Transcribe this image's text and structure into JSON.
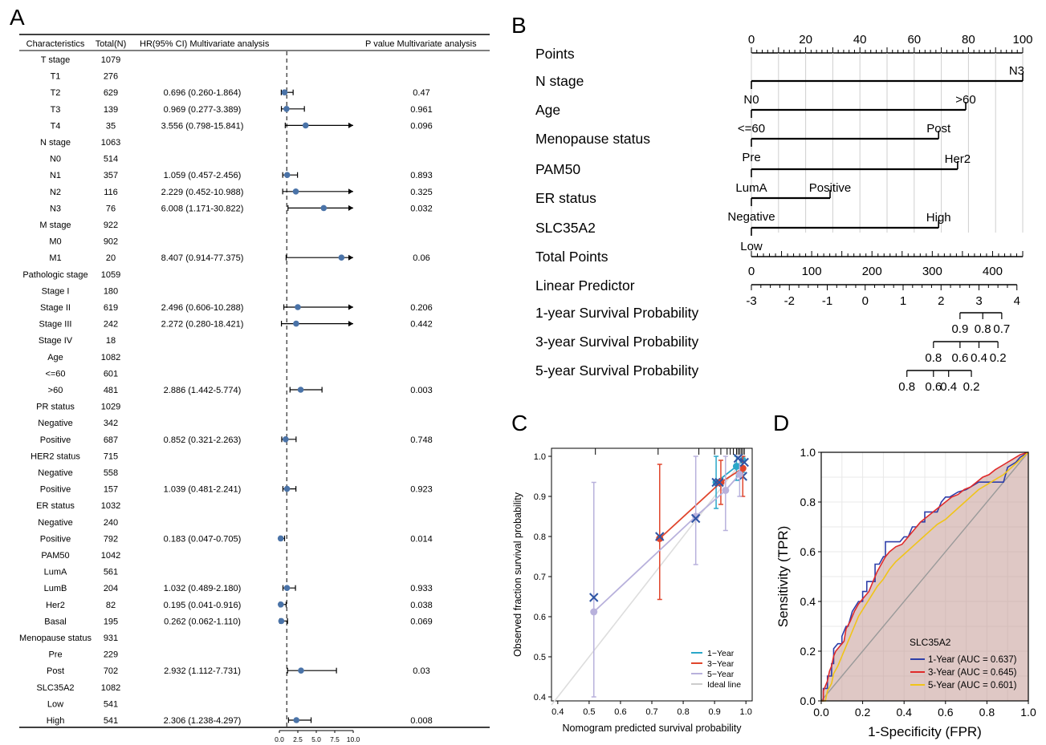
{
  "panels": {
    "A": "A",
    "B": "B",
    "C": "C",
    "D": "D"
  },
  "forest": {
    "headers": {
      "characteristics": "Characteristics",
      "total": "Total(N)",
      "hr": "HR(95% CI) Multivariate analysis",
      "p": "P value Multivariate analysis"
    },
    "axis_ticks": [
      "0.0",
      "2.5",
      "5.0",
      "7.5",
      "10.0"
    ],
    "axis_range": [
      0,
      10
    ],
    "rows": [
      {
        "label": "T stage",
        "n": "1079"
      },
      {
        "label": "T1",
        "n": "276"
      },
      {
        "label": "T2",
        "n": "629",
        "hr_text": "0.696 (0.260-1.864)",
        "p": "0.47",
        "hr": 0.696,
        "lo": 0.26,
        "hi": 1.864
      },
      {
        "label": "T3",
        "n": "139",
        "hr_text": "0.969 (0.277-3.389)",
        "p": "0.961",
        "hr": 0.969,
        "lo": 0.277,
        "hi": 3.389
      },
      {
        "label": "T4",
        "n": "35",
        "hr_text": "3.556 (0.798-15.841)",
        "p": "0.096",
        "hr": 3.556,
        "lo": 0.798,
        "hi": 15.841
      },
      {
        "label": "N stage",
        "n": "1063"
      },
      {
        "label": "N0",
        "n": "514"
      },
      {
        "label": "N1",
        "n": "357",
        "hr_text": "1.059 (0.457-2.456)",
        "p": "0.893",
        "hr": 1.059,
        "lo": 0.457,
        "hi": 2.456
      },
      {
        "label": "N2",
        "n": "116",
        "hr_text": "2.229 (0.452-10.988)",
        "p": "0.325",
        "hr": 2.229,
        "lo": 0.452,
        "hi": 10.988
      },
      {
        "label": "N3",
        "n": "76",
        "hr_text": "6.008 (1.171-30.822)",
        "p": "0.032",
        "hr": 6.008,
        "lo": 1.171,
        "hi": 30.822
      },
      {
        "label": "M stage",
        "n": "922"
      },
      {
        "label": "M0",
        "n": "902"
      },
      {
        "label": "M1",
        "n": "20",
        "hr_text": "8.407 (0.914-77.375)",
        "p": "0.06",
        "hr": 8.407,
        "lo": 0.914,
        "hi": 77.375
      },
      {
        "label": "Pathologic stage",
        "n": "1059"
      },
      {
        "label": "Stage I",
        "n": "180"
      },
      {
        "label": "Stage II",
        "n": "619",
        "hr_text": "2.496 (0.606-10.288)",
        "p": "0.206",
        "hr": 2.496,
        "lo": 0.606,
        "hi": 10.288
      },
      {
        "label": "Stage III",
        "n": "242",
        "hr_text": "2.272 (0.280-18.421)",
        "p": "0.442",
        "hr": 2.272,
        "lo": 0.28,
        "hi": 18.421
      },
      {
        "label": "Stage IV",
        "n": "18"
      },
      {
        "label": "Age",
        "n": "1082"
      },
      {
        "label": "<=60",
        "n": "601"
      },
      {
        "label": ">60",
        "n": "481",
        "hr_text": "2.886 (1.442-5.774)",
        "p": "0.003",
        "hr": 2.886,
        "lo": 1.442,
        "hi": 5.774
      },
      {
        "label": "PR status",
        "n": "1029"
      },
      {
        "label": "Negative",
        "n": "342"
      },
      {
        "label": "Positive",
        "n": "687",
        "hr_text": "0.852 (0.321-2.263)",
        "p": "0.748",
        "hr": 0.852,
        "lo": 0.321,
        "hi": 2.263
      },
      {
        "label": "HER2 status",
        "n": "715"
      },
      {
        "label": "Negative",
        "n": "558"
      },
      {
        "label": "Positive",
        "n": "157",
        "hr_text": "1.039 (0.481-2.241)",
        "p": "0.923",
        "hr": 1.039,
        "lo": 0.481,
        "hi": 2.241
      },
      {
        "label": "ER status",
        "n": "1032"
      },
      {
        "label": "Negative",
        "n": "240"
      },
      {
        "label": "Positive",
        "n": "792",
        "hr_text": "0.183 (0.047-0.705)",
        "p": "0.014",
        "hr": 0.183,
        "lo": 0.047,
        "hi": 0.705
      },
      {
        "label": "PAM50",
        "n": "1042"
      },
      {
        "label": "LumA",
        "n": "561"
      },
      {
        "label": "LumB",
        "n": "204",
        "hr_text": "1.032 (0.489-2.180)",
        "p": "0.933",
        "hr": 1.032,
        "lo": 0.489,
        "hi": 2.18
      },
      {
        "label": "Her2",
        "n": "82",
        "hr_text": "0.195 (0.041-0.916)",
        "p": "0.038",
        "hr": 0.195,
        "lo": 0.041,
        "hi": 0.916
      },
      {
        "label": "Basal",
        "n": "195",
        "hr_text": "0.262 (0.062-1.110)",
        "p": "0.069",
        "hr": 0.262,
        "lo": 0.062,
        "hi": 1.11
      },
      {
        "label": "Menopause status",
        "n": "931"
      },
      {
        "label": "Pre",
        "n": "229"
      },
      {
        "label": "Post",
        "n": "702",
        "hr_text": "2.932 (1.112-7.731)",
        "p": "0.03",
        "hr": 2.932,
        "lo": 1.112,
        "hi": 7.731
      },
      {
        "label": "SLC35A2",
        "n": "1082"
      },
      {
        "label": "Low",
        "n": "541"
      },
      {
        "label": "High",
        "n": "541",
        "hr_text": "2.306 (1.238-4.297)",
        "p": "0.008",
        "hr": 2.306,
        "lo": 1.238,
        "hi": 4.297
      }
    ]
  },
  "nomogram": {
    "row_labels": [
      "Points",
      "N stage",
      "Age",
      "Menopause status",
      "PAM50",
      "ER status",
      "SLC35A2",
      "Total Points",
      "Linear Predictor",
      "1-year Survival Probability",
      "3-year Survival Probability",
      "5-year Survival Probability"
    ],
    "points_range": [
      0,
      100
    ],
    "points_ticks": [
      "0",
      "20",
      "40",
      "60",
      "80",
      "100"
    ],
    "variables": [
      {
        "name": "N stage",
        "max": 100,
        "labels": [
          {
            "text": "N3",
            "at": 100,
            "pos": "above-end"
          },
          {
            "text": "N0",
            "at": 0,
            "pos": "below"
          }
        ]
      },
      {
        "name": "Age",
        "max": 79,
        "labels": [
          {
            "text": ">60",
            "at": 79,
            "pos": "above-end"
          },
          {
            "text": "<=60",
            "at": 0,
            "pos": "below"
          }
        ]
      },
      {
        "name": "Menopause status",
        "max": 69,
        "labels": [
          {
            "text": "Post",
            "at": 69,
            "pos": "above-end"
          },
          {
            "text": "Pre",
            "at": 0,
            "pos": "below"
          }
        ]
      },
      {
        "name": "PAM50",
        "max": 76,
        "labels": [
          {
            "text": "Her2",
            "at": 76,
            "pos": "above-end"
          },
          {
            "text": "LumA",
            "at": 0,
            "pos": "below"
          }
        ]
      },
      {
        "name": "ER status",
        "max": 29,
        "labels": [
          {
            "text": "Positive",
            "at": 29,
            "pos": "above-end"
          },
          {
            "text": "Negative",
            "at": 0,
            "pos": "below"
          }
        ]
      },
      {
        "name": "SLC35A2",
        "max": 69,
        "labels": [
          {
            "text": "High",
            "at": 69,
            "pos": "above-end"
          },
          {
            "text": "Low",
            "at": 0,
            "pos": "below"
          }
        ]
      }
    ],
    "total_points": {
      "range": [
        0,
        450
      ],
      "ticks": [
        "0",
        "100",
        "200",
        "300",
        "400"
      ]
    },
    "linear_predictor": {
      "range": [
        -3,
        4
      ],
      "ticks": [
        "-3",
        "-2",
        "-1",
        "0",
        "1",
        "2",
        "3",
        "4"
      ]
    },
    "survival": [
      {
        "name": "1-year Survival Probability",
        "ticks": [
          "0.9",
          "0.8",
          "0.7"
        ],
        "tick_lp": [
          2.5,
          3.1,
          3.6
        ]
      },
      {
        "name": "3-year Survival Probability",
        "ticks": [
          "0.8",
          "0.6",
          "0.4",
          "0.2"
        ],
        "tick_lp": [
          1.8,
          2.5,
          3.0,
          3.5
        ]
      },
      {
        "name": "5-year Survival Probability",
        "ticks": [
          "0.8",
          "0.6",
          "0.4",
          "0.2"
        ],
        "tick_lp": [
          1.1,
          1.8,
          2.2,
          2.8
        ]
      }
    ]
  },
  "calibration": {
    "xlabel": "Nomogram predicted survival probability",
    "ylabel": "Observed fraction survival probability",
    "xlim": [
      0.38,
      1.02
    ],
    "ylim": [
      0.39,
      1.02
    ],
    "xticks": [
      "0.4",
      "0.5",
      "0.6",
      "0.7",
      "0.8",
      "0.9",
      "1.0"
    ],
    "yticks": [
      "0.4",
      "0.5",
      "0.6",
      "0.7",
      "0.8",
      "0.9",
      "1.0"
    ],
    "legend": [
      "1−Year",
      "3−Year",
      "5−Year",
      "Ideal line"
    ],
    "colors": [
      "#2aa7c9",
      "#e0452c",
      "#b8b1dc",
      "#cccccc"
    ],
    "series": [
      {
        "name": "1−Year",
        "color": "#2aa7c9",
        "x": [
          0.905,
          0.97,
          0.99
        ],
        "y": [
          0.935,
          0.975,
          0.99
        ],
        "lo": [
          0.87,
          0.94,
          0.96
        ],
        "hi": [
          1.0,
          1.0,
          1.0
        ],
        "xmarks": [
          [
            0.905,
            0.935
          ],
          [
            0.99,
            0.95
          ]
        ]
      },
      {
        "name": "3−Year",
        "color": "#e0452c",
        "x": [
          0.725,
          0.92,
          0.99
        ],
        "y": [
          0.795,
          0.935,
          0.97
        ],
        "lo": [
          0.643,
          0.88,
          0.9
        ],
        "hi": [
          0.98,
          0.99,
          1.0
        ],
        "xmarks": [
          [
            0.725,
            0.8
          ],
          [
            0.915,
            0.935
          ]
        ]
      },
      {
        "name": "5−Year",
        "color": "#b8b1dc",
        "x": [
          0.515,
          0.84,
          0.935,
          0.98
        ],
        "y": [
          0.612,
          0.85,
          0.915,
          0.955
        ],
        "lo": [
          0.4,
          0.73,
          0.815,
          0.9
        ],
        "hi": [
          0.935,
          1.0,
          1.0,
          1.0
        ],
        "xmarks": [
          [
            0.515,
            0.648
          ],
          [
            0.84,
            0.845
          ],
          [
            0.975,
            0.995
          ],
          [
            0.995,
            0.985
          ]
        ]
      }
    ],
    "rug": [
      0.52,
      0.72,
      0.85,
      0.9,
      0.92,
      0.94,
      0.95,
      0.96,
      0.97,
      0.975,
      0.98,
      0.985,
      0.99,
      0.995
    ]
  },
  "roc": {
    "xlabel": "1-Specificity (FPR)",
    "ylabel": "Sensitivity (TPR)",
    "xticks": [
      "0.0",
      "0.2",
      "0.4",
      "0.6",
      "0.8",
      "1.0"
    ],
    "yticks": [
      "0.0",
      "0.2",
      "0.4",
      "0.6",
      "0.8",
      "1.0"
    ],
    "legend_title": "SLC35A2",
    "legend": [
      "1-Year (AUC = 0.637)",
      "3-Year (AUC = 0.645)",
      "5-Year (AUC = 0.601)"
    ],
    "series": [
      {
        "name": "1-Year (AUC = 0.637)",
        "color": "#2e3ea8",
        "points": [
          [
            0,
            0
          ],
          [
            0.01,
            0
          ],
          [
            0.01,
            0.05
          ],
          [
            0.03,
            0.05
          ],
          [
            0.03,
            0.1
          ],
          [
            0.05,
            0.1
          ],
          [
            0.05,
            0.15
          ],
          [
            0.06,
            0.15
          ],
          [
            0.06,
            0.21
          ],
          [
            0.08,
            0.23
          ],
          [
            0.1,
            0.23
          ],
          [
            0.1,
            0.26
          ],
          [
            0.12,
            0.3
          ],
          [
            0.13,
            0.3
          ],
          [
            0.15,
            0.36
          ],
          [
            0.18,
            0.4
          ],
          [
            0.2,
            0.4
          ],
          [
            0.2,
            0.44
          ],
          [
            0.22,
            0.44
          ],
          [
            0.22,
            0.48
          ],
          [
            0.26,
            0.48
          ],
          [
            0.26,
            0.55
          ],
          [
            0.28,
            0.55
          ],
          [
            0.3,
            0.58
          ],
          [
            0.31,
            0.58
          ],
          [
            0.31,
            0.64
          ],
          [
            0.38,
            0.64
          ],
          [
            0.4,
            0.66
          ],
          [
            0.42,
            0.66
          ],
          [
            0.44,
            0.7
          ],
          [
            0.46,
            0.7
          ],
          [
            0.48,
            0.72
          ],
          [
            0.5,
            0.72
          ],
          [
            0.5,
            0.76
          ],
          [
            0.56,
            0.76
          ],
          [
            0.58,
            0.8
          ],
          [
            0.6,
            0.82
          ],
          [
            0.62,
            0.82
          ],
          [
            0.66,
            0.84
          ],
          [
            0.7,
            0.85
          ],
          [
            0.76,
            0.88
          ],
          [
            0.8,
            0.88
          ],
          [
            0.84,
            0.88
          ],
          [
            0.88,
            0.88
          ],
          [
            0.9,
            0.94
          ],
          [
            0.94,
            0.96
          ],
          [
            0.96,
            0.98
          ],
          [
            1,
            1
          ]
        ]
      },
      {
        "name": "3-Year (AUC = 0.645)",
        "color": "#e02a2a",
        "points": [
          [
            0,
            0
          ],
          [
            0.01,
            0
          ],
          [
            0.01,
            0.04
          ],
          [
            0.02,
            0.06
          ],
          [
            0.03,
            0.08
          ],
          [
            0.04,
            0.12
          ],
          [
            0.05,
            0.14
          ],
          [
            0.06,
            0.18
          ],
          [
            0.07,
            0.2
          ],
          [
            0.09,
            0.22
          ],
          [
            0.11,
            0.24
          ],
          [
            0.12,
            0.29
          ],
          [
            0.14,
            0.32
          ],
          [
            0.16,
            0.36
          ],
          [
            0.18,
            0.39
          ],
          [
            0.21,
            0.42
          ],
          [
            0.23,
            0.44
          ],
          [
            0.25,
            0.48
          ],
          [
            0.27,
            0.52
          ],
          [
            0.29,
            0.55
          ],
          [
            0.31,
            0.58
          ],
          [
            0.33,
            0.6
          ],
          [
            0.36,
            0.62
          ],
          [
            0.39,
            0.63
          ],
          [
            0.42,
            0.66
          ],
          [
            0.45,
            0.69
          ],
          [
            0.48,
            0.72
          ],
          [
            0.51,
            0.74
          ],
          [
            0.54,
            0.76
          ],
          [
            0.57,
            0.78
          ],
          [
            0.6,
            0.8
          ],
          [
            0.63,
            0.82
          ],
          [
            0.66,
            0.83
          ],
          [
            0.69,
            0.85
          ],
          [
            0.72,
            0.86
          ],
          [
            0.75,
            0.88
          ],
          [
            0.78,
            0.9
          ],
          [
            0.81,
            0.91
          ],
          [
            0.84,
            0.93
          ],
          [
            0.88,
            0.95
          ],
          [
            0.92,
            0.97
          ],
          [
            0.96,
            0.99
          ],
          [
            1,
            1
          ]
        ]
      },
      {
        "name": "5-Year (AUC = 0.601)",
        "color": "#f0c419",
        "points": [
          [
            0,
            0
          ],
          [
            0.02,
            0
          ],
          [
            0.03,
            0.04
          ],
          [
            0.05,
            0.07
          ],
          [
            0.06,
            0.11
          ],
          [
            0.08,
            0.14
          ],
          [
            0.1,
            0.18
          ],
          [
            0.12,
            0.22
          ],
          [
            0.14,
            0.26
          ],
          [
            0.16,
            0.3
          ],
          [
            0.18,
            0.34
          ],
          [
            0.21,
            0.38
          ],
          [
            0.24,
            0.42
          ],
          [
            0.27,
            0.46
          ],
          [
            0.3,
            0.49
          ],
          [
            0.33,
            0.53
          ],
          [
            0.36,
            0.56
          ],
          [
            0.4,
            0.59
          ],
          [
            0.44,
            0.62
          ],
          [
            0.48,
            0.65
          ],
          [
            0.52,
            0.68
          ],
          [
            0.56,
            0.71
          ],
          [
            0.6,
            0.73
          ],
          [
            0.64,
            0.76
          ],
          [
            0.68,
            0.79
          ],
          [
            0.72,
            0.82
          ],
          [
            0.76,
            0.85
          ],
          [
            0.8,
            0.87
          ],
          [
            0.84,
            0.89
          ],
          [
            0.88,
            0.91
          ],
          [
            0.92,
            0.94
          ],
          [
            0.96,
            0.97
          ],
          [
            1,
            1
          ]
        ]
      }
    ]
  }
}
